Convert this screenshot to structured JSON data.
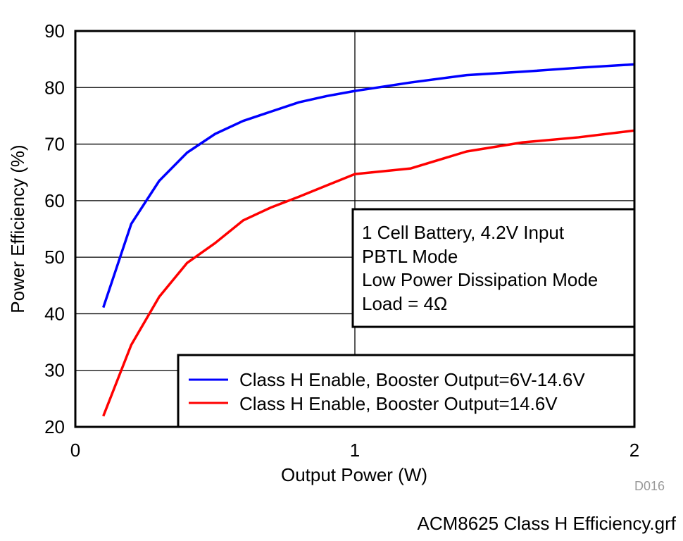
{
  "chart_data": {
    "type": "line",
    "title": "",
    "xlabel": "Output Power (W)",
    "ylabel": "Power Efficiency (%)",
    "xlim": [
      0,
      2
    ],
    "ylim": [
      20,
      90
    ],
    "xticks": [
      "0",
      "1",
      "2"
    ],
    "yticks": [
      "20",
      "30",
      "40",
      "50",
      "60",
      "70",
      "80",
      "90"
    ],
    "grid": true,
    "legend_position": "bottom-right",
    "series": [
      {
        "name": "Class H Enable, Booster Output=6V-14.6V",
        "color": "#0000ff",
        "x": [
          0.1,
          0.2,
          0.3,
          0.4,
          0.5,
          0.6,
          0.8,
          0.9,
          1.0,
          1.2,
          1.4,
          1.6,
          1.8,
          2.0
        ],
        "y": [
          41.1,
          55.9,
          63.5,
          68.5,
          71.8,
          74.1,
          77.4,
          78.5,
          79.4,
          80.9,
          82.2,
          82.8,
          83.5,
          84.1
        ]
      },
      {
        "name": "Class H Enable, Booster Output=14.6V",
        "color": "#ff0000",
        "x": [
          0.1,
          0.2,
          0.3,
          0.4,
          0.5,
          0.6,
          0.7,
          0.8,
          0.9,
          1.0,
          1.2,
          1.4,
          1.6,
          1.8,
          2.0
        ],
        "y": [
          21.9,
          34.5,
          43.0,
          49.0,
          52.5,
          56.5,
          58.8,
          60.7,
          62.7,
          64.7,
          65.7,
          68.7,
          70.3,
          71.2,
          72.4
        ]
      }
    ],
    "annotation": [
      "1 Cell Battery, 4.2V Input",
      "PBTL Mode",
      "Low Power Dissipation Mode",
      "Load = 4Ω"
    ],
    "figure_id": "D016",
    "footer": "ACM8625  Class H Efficiency.grf"
  }
}
